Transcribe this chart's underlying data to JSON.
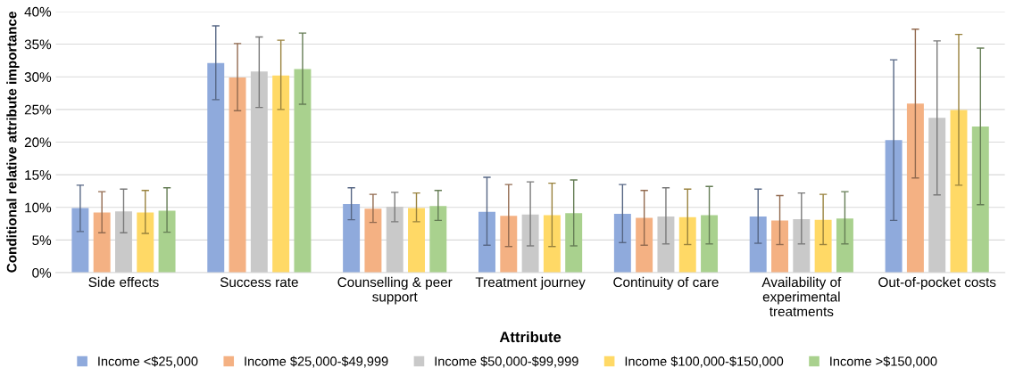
{
  "chart_data": {
    "type": "bar",
    "xlabel": "Attribute",
    "ylabel": "Conditional relative attribute importance",
    "categories": [
      "Side effects",
      "Success rate",
      "Counselling & peer\nsupport",
      "Treatment journey",
      "Continuity of care",
      "Availability of\nexperimental\ntreatments",
      "Out-of-pocket costs"
    ],
    "ylim": [
      0,
      40
    ],
    "yticks": [
      {
        "value": 0,
        "label": "0%"
      },
      {
        "value": 5,
        "label": "5%"
      },
      {
        "value": 10,
        "label": "10%"
      },
      {
        "value": 15,
        "label": "15%"
      },
      {
        "value": 20,
        "label": "20%"
      },
      {
        "value": 25,
        "label": "25%"
      },
      {
        "value": 30,
        "label": "30%"
      },
      {
        "value": 35,
        "label": "35%"
      },
      {
        "value": 40,
        "label": "40%"
      }
    ],
    "grid": "y",
    "legend": "bottom",
    "series": [
      {
        "name": "Income <$25,000",
        "color": "#8faadc",
        "values": [
          9.9,
          32.1,
          10.5,
          9.3,
          9.0,
          8.6,
          20.3
        ],
        "errors": [
          [
            6.3,
            13.4
          ],
          [
            26.5,
            37.8
          ],
          [
            8.1,
            13.0
          ],
          [
            4.2,
            14.6
          ],
          [
            4.6,
            13.5
          ],
          [
            4.5,
            12.8
          ],
          [
            8.0,
            32.6
          ]
        ]
      },
      {
        "name": "Income $25,000-$49,999",
        "color": "#f4b183",
        "values": [
          9.2,
          29.9,
          9.8,
          8.7,
          8.4,
          8.0,
          25.9
        ],
        "errors": [
          [
            6.1,
            12.4
          ],
          [
            24.8,
            35.1
          ],
          [
            7.7,
            12.0
          ],
          [
            4.0,
            13.5
          ],
          [
            4.2,
            12.6
          ],
          [
            4.3,
            11.8
          ],
          [
            14.5,
            37.3
          ]
        ]
      },
      {
        "name": "Income $50,000-$99,999",
        "color": "#c9c9c9",
        "values": [
          9.4,
          30.8,
          10.1,
          8.9,
          8.6,
          8.2,
          23.7
        ],
        "errors": [
          [
            6.1,
            12.8
          ],
          [
            25.3,
            36.1
          ],
          [
            7.8,
            12.3
          ],
          [
            4.1,
            13.9
          ],
          [
            4.4,
            13.0
          ],
          [
            4.4,
            12.2
          ],
          [
            11.9,
            35.5
          ]
        ]
      },
      {
        "name": "Income $100,000-$150,000",
        "color": "#ffd966",
        "values": [
          9.2,
          30.2,
          9.9,
          8.8,
          8.5,
          8.1,
          24.9
        ],
        "errors": [
          [
            6.0,
            12.6
          ],
          [
            25.0,
            35.6
          ],
          [
            7.8,
            12.2
          ],
          [
            4.0,
            13.7
          ],
          [
            4.3,
            12.8
          ],
          [
            4.3,
            12.0
          ],
          [
            13.4,
            36.5
          ]
        ]
      },
      {
        "name": "Income >$150,000",
        "color": "#a9d18e",
        "values": [
          9.5,
          31.2,
          10.2,
          9.1,
          8.8,
          8.3,
          22.4
        ],
        "errors": [
          [
            6.2,
            13.0
          ],
          [
            25.8,
            36.7
          ],
          [
            8.0,
            12.6
          ],
          [
            4.1,
            14.2
          ],
          [
            4.4,
            13.2
          ],
          [
            4.4,
            12.4
          ],
          [
            10.4,
            34.4
          ]
        ]
      }
    ]
  }
}
